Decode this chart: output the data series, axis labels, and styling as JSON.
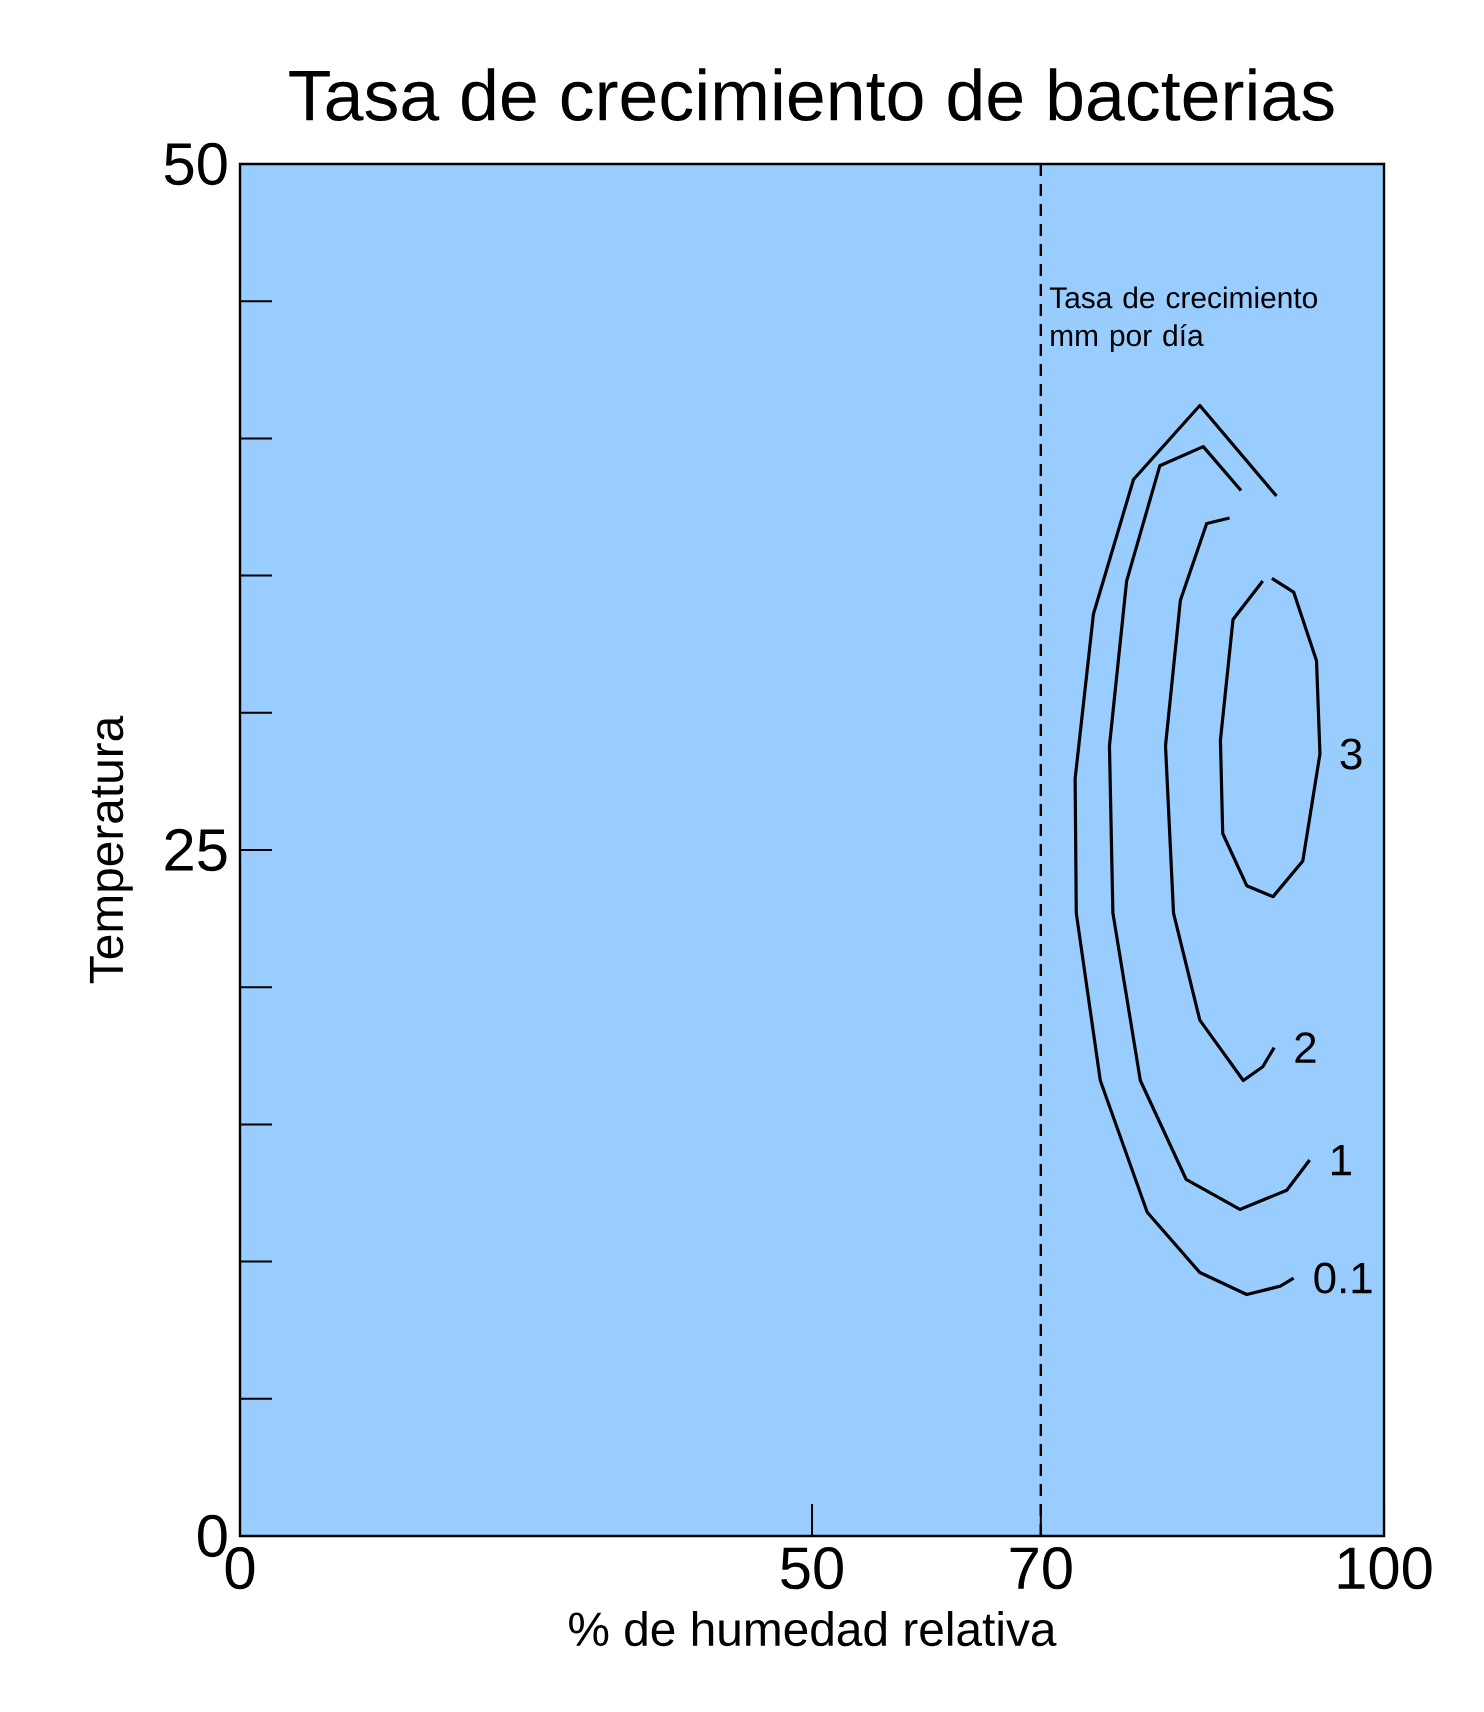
{
  "chart_data": {
    "type": "line",
    "title": "Tasa de crecimiento de bacterias",
    "xlabel": "% de humedad relativa",
    "ylabel": "Temperatura",
    "xlim": [
      0,
      100
    ],
    "ylim": [
      0,
      50
    ],
    "xticks": [
      0,
      50,
      70,
      100
    ],
    "yticks": [
      0,
      {
        "value": 5,
        "label": null
      },
      {
        "value": 10,
        "label": null
      },
      {
        "value": 15,
        "label": null
      },
      {
        "value": 20,
        "label": null
      },
      25,
      {
        "value": 30,
        "label": null
      },
      {
        "value": 35,
        "label": null
      },
      {
        "value": 40,
        "label": null
      },
      {
        "value": 45,
        "label": null
      },
      50
    ],
    "grid": false,
    "legend": false,
    "line_style": "solid",
    "ref_lines": [
      {
        "axis": "x",
        "value": 70,
        "color": "#000000",
        "line_style": "dashed"
      }
    ],
    "annotations": [
      "Tasa de crecimiento mm por día"
    ],
    "series": [
      {
        "name": "0.1",
        "color": "#000000",
        "x": [
          90.6,
          83.9,
          78.1,
          74.6,
          73.0,
          73.1,
          75.2,
          79.3,
          83.9,
          88.0,
          90.9,
          92.1
        ],
        "values": [
          37.9,
          41.2,
          38.5,
          33.6,
          27.6,
          22.7,
          16.6,
          11.8,
          9.6,
          8.8,
          9.1,
          9.4
        ]
      },
      {
        "name": "1",
        "color": "#000000",
        "x": [
          87.5,
          84.2,
          80.4,
          77.5,
          76.0,
          76.3,
          78.7,
          82.7,
          87.4,
          91.5,
          93.5
        ],
        "values": [
          38.1,
          39.7,
          39.0,
          34.8,
          28.8,
          22.7,
          16.6,
          13.0,
          11.9,
          12.6,
          13.7
        ]
      },
      {
        "name": "2",
        "color": "#000000",
        "x": [
          86.5,
          84.5,
          82.2,
          80.9,
          81.6,
          83.9,
          87.7,
          89.4,
          90.4
        ],
        "values": [
          37.1,
          36.9,
          34.1,
          28.8,
          22.7,
          18.8,
          16.6,
          17.1,
          17.8
        ]
      },
      {
        "name": "3",
        "color": "#000000",
        "x": [
          89.4,
          86.8,
          85.7,
          85.9,
          88.0,
          90.3,
          92.9,
          94.4,
          94.1,
          92.1,
          90.2
        ],
        "values": [
          34.8,
          33.4,
          29.0,
          25.6,
          23.7,
          23.3,
          24.6,
          28.5,
          31.9,
          34.4,
          34.9
        ]
      }
    ]
  }
}
